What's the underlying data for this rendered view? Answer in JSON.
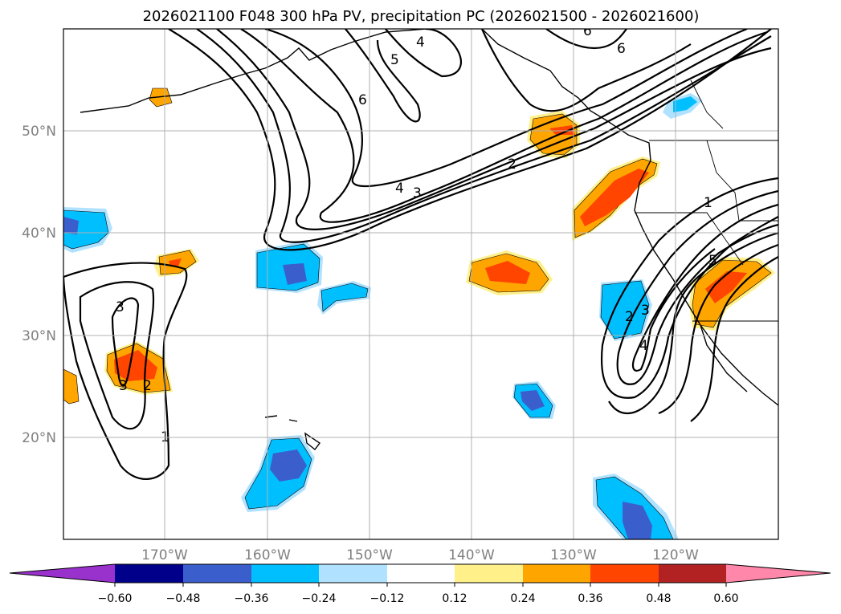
{
  "title": "2026021100 F048 300 hPa PV, precipitation PC (2026021500 - 2026021600)",
  "lon_labels": [
    "170°W",
    "160°W",
    "150°W",
    "140°W",
    "130°W",
    "120°W"
  ],
  "lat_labels": [
    "50°N",
    "40°N",
    "30°N",
    "20°N"
  ],
  "colorbar": {
    "ticks": [
      "−0.60",
      "−0.48",
      "−0.36",
      "−0.24",
      "−0.12",
      "0.12",
      "0.24",
      "0.36",
      "0.48",
      "0.60"
    ],
    "colors": [
      "#9932cc",
      "#00008b",
      "#3a5fcd",
      "#00bfff",
      "#b0e2ff",
      "#ffffff",
      "#fff08a",
      "#ffa500",
      "#ff4500",
      "#b22222",
      "#ff88aa"
    ]
  },
  "contour_labels": {
    "l6a": "6",
    "l5a": "5",
    "l4a": "4",
    "l6b": "6",
    "l2a": "2",
    "l3a": "3",
    "l4b": "4",
    "l1a": "1",
    "l2b": "2",
    "l3b": "3",
    "l3c": "3",
    "l3d": "3",
    "l2c": "2",
    "l1b": "1",
    "l1c": "1",
    "l4c": "4",
    "l5b": "5",
    "l2d": "2",
    "l3e": "3",
    "l4d": "4"
  }
}
